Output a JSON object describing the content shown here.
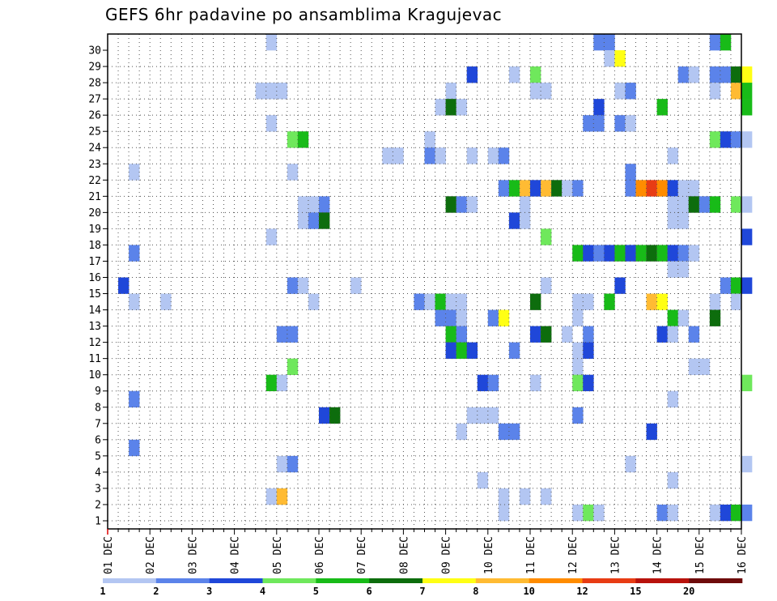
{
  "title": "GEFS 6hr padavine po ansamblima Kragujevac",
  "chart_data": {
    "type": "heatmap",
    "title": "GEFS 6hr padavine po ansamblima Kragujevac",
    "x_tick_labels": [
      "01 DEC",
      "02 DEC",
      "03 DEC",
      "04 DEC",
      "05 DEC",
      "06 DEC",
      "07 DEC",
      "08 DEC",
      "09 DEC",
      "10 DEC",
      "11 DEC",
      "12 DEC",
      "13 DEC",
      "14 DEC",
      "15 DEC",
      "16 DEC"
    ],
    "y_tick_labels": [
      "1",
      "2",
      "3",
      "4",
      "5",
      "6",
      "7",
      "8",
      "9",
      "10",
      "11",
      "12",
      "13",
      "14",
      "15",
      "16",
      "17",
      "18",
      "19",
      "20",
      "21",
      "22",
      "23",
      "24",
      "25",
      "26",
      "27",
      "28",
      "29",
      "30"
    ],
    "x_range": [
      "01 DEC 00Z",
      "16 DEC 00Z"
    ],
    "time_step_hours": 6,
    "grid": true,
    "colorbar": {
      "position": "bottom",
      "levels": [
        "1",
        "2",
        "3",
        "4",
        "5",
        "6",
        "7",
        "8",
        "10",
        "12",
        "15",
        "20"
      ],
      "colors": [
        "#b3c6f2",
        "#5b83ea",
        "#1f47d9",
        "#6fe85c",
        "#18bb18",
        "#0d6d0d",
        "#ffff14",
        "#ffbb33",
        "#ff8c00",
        "#e83c14",
        "#b8120c",
        "#6e0b0b"
      ]
    },
    "cells": [
      [
        30,
        15,
        0
      ],
      [
        30,
        46,
        1
      ],
      [
        30,
        47,
        1
      ],
      [
        30,
        57,
        1
      ],
      [
        30,
        58,
        4
      ],
      [
        29,
        47,
        0
      ],
      [
        29,
        48,
        6
      ],
      [
        28,
        34,
        2
      ],
      [
        28,
        38,
        0
      ],
      [
        28,
        40,
        3
      ],
      [
        28,
        54,
        1
      ],
      [
        28,
        55,
        0
      ],
      [
        28,
        57,
        1
      ],
      [
        28,
        58,
        1
      ],
      [
        28,
        59,
        5
      ],
      [
        28,
        60,
        6
      ],
      [
        27,
        14,
        0
      ],
      [
        27,
        15,
        0
      ],
      [
        27,
        16,
        0
      ],
      [
        27,
        32,
        0
      ],
      [
        27,
        40,
        0
      ],
      [
        27,
        41,
        0
      ],
      [
        27,
        48,
        0
      ],
      [
        27,
        49,
        1
      ],
      [
        27,
        57,
        0
      ],
      [
        27,
        59,
        7
      ],
      [
        27,
        60,
        4
      ],
      [
        26,
        31,
        0
      ],
      [
        26,
        32,
        5
      ],
      [
        26,
        33,
        0
      ],
      [
        26,
        46,
        2
      ],
      [
        26,
        52,
        4
      ],
      [
        26,
        60,
        4
      ],
      [
        25,
        15,
        0
      ],
      [
        25,
        45,
        1
      ],
      [
        25,
        46,
        1
      ],
      [
        25,
        48,
        1
      ],
      [
        25,
        49,
        0
      ],
      [
        24,
        17,
        3
      ],
      [
        24,
        18,
        4
      ],
      [
        24,
        30,
        0
      ],
      [
        24,
        57,
        3
      ],
      [
        24,
        58,
        2
      ],
      [
        24,
        59,
        1
      ],
      [
        24,
        60,
        0
      ],
      [
        23,
        26,
        0
      ],
      [
        23,
        27,
        0
      ],
      [
        23,
        30,
        1
      ],
      [
        23,
        31,
        0
      ],
      [
        23,
        34,
        0
      ],
      [
        23,
        36,
        0
      ],
      [
        23,
        37,
        1
      ],
      [
        23,
        53,
        0
      ],
      [
        22,
        2,
        0
      ],
      [
        22,
        17,
        0
      ],
      [
        22,
        49,
        1
      ],
      [
        21,
        37,
        1
      ],
      [
        21,
        38,
        4
      ],
      [
        21,
        39,
        7
      ],
      [
        21,
        40,
        2
      ],
      [
        21,
        41,
        7
      ],
      [
        21,
        42,
        5
      ],
      [
        21,
        43,
        0
      ],
      [
        21,
        44,
        1
      ],
      [
        21,
        49,
        1
      ],
      [
        21,
        50,
        8
      ],
      [
        21,
        51,
        9
      ],
      [
        21,
        52,
        8
      ],
      [
        21,
        53,
        2
      ],
      [
        21,
        54,
        0
      ],
      [
        21,
        55,
        0
      ],
      [
        20,
        18,
        0
      ],
      [
        20,
        19,
        0
      ],
      [
        20,
        20,
        1
      ],
      [
        20,
        32,
        5
      ],
      [
        20,
        33,
        1
      ],
      [
        20,
        34,
        0
      ],
      [
        20,
        39,
        0
      ],
      [
        20,
        53,
        0
      ],
      [
        20,
        54,
        0
      ],
      [
        20,
        55,
        5
      ],
      [
        20,
        56,
        1
      ],
      [
        20,
        57,
        4
      ],
      [
        20,
        59,
        3
      ],
      [
        20,
        60,
        0
      ],
      [
        19,
        18,
        0
      ],
      [
        19,
        19,
        1
      ],
      [
        19,
        20,
        5
      ],
      [
        19,
        38,
        2
      ],
      [
        19,
        39,
        0
      ],
      [
        19,
        53,
        0
      ],
      [
        19,
        54,
        0
      ],
      [
        18,
        15,
        0
      ],
      [
        18,
        41,
        3
      ],
      [
        18,
        60,
        2
      ],
      [
        17,
        2,
        1
      ],
      [
        17,
        44,
        4
      ],
      [
        17,
        45,
        2
      ],
      [
        17,
        46,
        1
      ],
      [
        17,
        47,
        2
      ],
      [
        17,
        48,
        4
      ],
      [
        17,
        49,
        2
      ],
      [
        17,
        50,
        4
      ],
      [
        17,
        51,
        5
      ],
      [
        17,
        52,
        4
      ],
      [
        17,
        53,
        2
      ],
      [
        17,
        54,
        1
      ],
      [
        17,
        55,
        0
      ],
      [
        16,
        53,
        0
      ],
      [
        16,
        54,
        0
      ],
      [
        15,
        1,
        2
      ],
      [
        15,
        17,
        1
      ],
      [
        15,
        18,
        0
      ],
      [
        15,
        23,
        0
      ],
      [
        15,
        41,
        0
      ],
      [
        15,
        48,
        2
      ],
      [
        15,
        58,
        1
      ],
      [
        15,
        59,
        4
      ],
      [
        15,
        60,
        2
      ],
      [
        14,
        2,
        0
      ],
      [
        14,
        5,
        0
      ],
      [
        14,
        19,
        0
      ],
      [
        14,
        29,
        1
      ],
      [
        14,
        30,
        0
      ],
      [
        14,
        31,
        4
      ],
      [
        14,
        32,
        0
      ],
      [
        14,
        33,
        0
      ],
      [
        14,
        40,
        5
      ],
      [
        14,
        44,
        0
      ],
      [
        14,
        45,
        0
      ],
      [
        14,
        47,
        4
      ],
      [
        14,
        51,
        7
      ],
      [
        14,
        52,
        6
      ],
      [
        14,
        57,
        0
      ],
      [
        14,
        59,
        0
      ],
      [
        13,
        31,
        1
      ],
      [
        13,
        32,
        1
      ],
      [
        13,
        33,
        0
      ],
      [
        13,
        36,
        1
      ],
      [
        13,
        37,
        6
      ],
      [
        13,
        44,
        0
      ],
      [
        13,
        53,
        4
      ],
      [
        13,
        54,
        0
      ],
      [
        13,
        57,
        5
      ],
      [
        12,
        16,
        1
      ],
      [
        12,
        17,
        1
      ],
      [
        12,
        32,
        4
      ],
      [
        12,
        33,
        1
      ],
      [
        12,
        40,
        2
      ],
      [
        12,
        41,
        5
      ],
      [
        12,
        43,
        0
      ],
      [
        12,
        45,
        1
      ],
      [
        12,
        52,
        2
      ],
      [
        12,
        53,
        0
      ],
      [
        12,
        55,
        1
      ],
      [
        11,
        32,
        2
      ],
      [
        11,
        33,
        4
      ],
      [
        11,
        34,
        2
      ],
      [
        11,
        38,
        1
      ],
      [
        11,
        44,
        0
      ],
      [
        11,
        45,
        2
      ],
      [
        10,
        17,
        3
      ],
      [
        10,
        44,
        0
      ],
      [
        10,
        55,
        0
      ],
      [
        10,
        56,
        0
      ],
      [
        9,
        15,
        4
      ],
      [
        9,
        16,
        0
      ],
      [
        9,
        35,
        2
      ],
      [
        9,
        36,
        1
      ],
      [
        9,
        40,
        0
      ],
      [
        9,
        44,
        3
      ],
      [
        9,
        45,
        2
      ],
      [
        9,
        60,
        3
      ],
      [
        8,
        2,
        1
      ],
      [
        8,
        53,
        0
      ],
      [
        7,
        20,
        2
      ],
      [
        7,
        21,
        5
      ],
      [
        7,
        34,
        0
      ],
      [
        7,
        35,
        0
      ],
      [
        7,
        36,
        0
      ],
      [
        7,
        44,
        1
      ],
      [
        6,
        33,
        0
      ],
      [
        6,
        37,
        1
      ],
      [
        6,
        38,
        1
      ],
      [
        6,
        51,
        2
      ],
      [
        5,
        2,
        1
      ],
      [
        4,
        16,
        0
      ],
      [
        4,
        17,
        1
      ],
      [
        4,
        49,
        0
      ],
      [
        4,
        60,
        0
      ],
      [
        3,
        35,
        0
      ],
      [
        3,
        53,
        0
      ],
      [
        2,
        15,
        0
      ],
      [
        2,
        16,
        7
      ],
      [
        2,
        37,
        0
      ],
      [
        2,
        39,
        0
      ],
      [
        2,
        41,
        0
      ],
      [
        1,
        37,
        0
      ],
      [
        1,
        44,
        0
      ],
      [
        1,
        45,
        3
      ],
      [
        1,
        46,
        0
      ],
      [
        1,
        52,
        1
      ],
      [
        1,
        53,
        0
      ],
      [
        1,
        57,
        0
      ],
      [
        1,
        58,
        2
      ],
      [
        1,
        59,
        4
      ],
      [
        1,
        60,
        1
      ]
    ]
  }
}
